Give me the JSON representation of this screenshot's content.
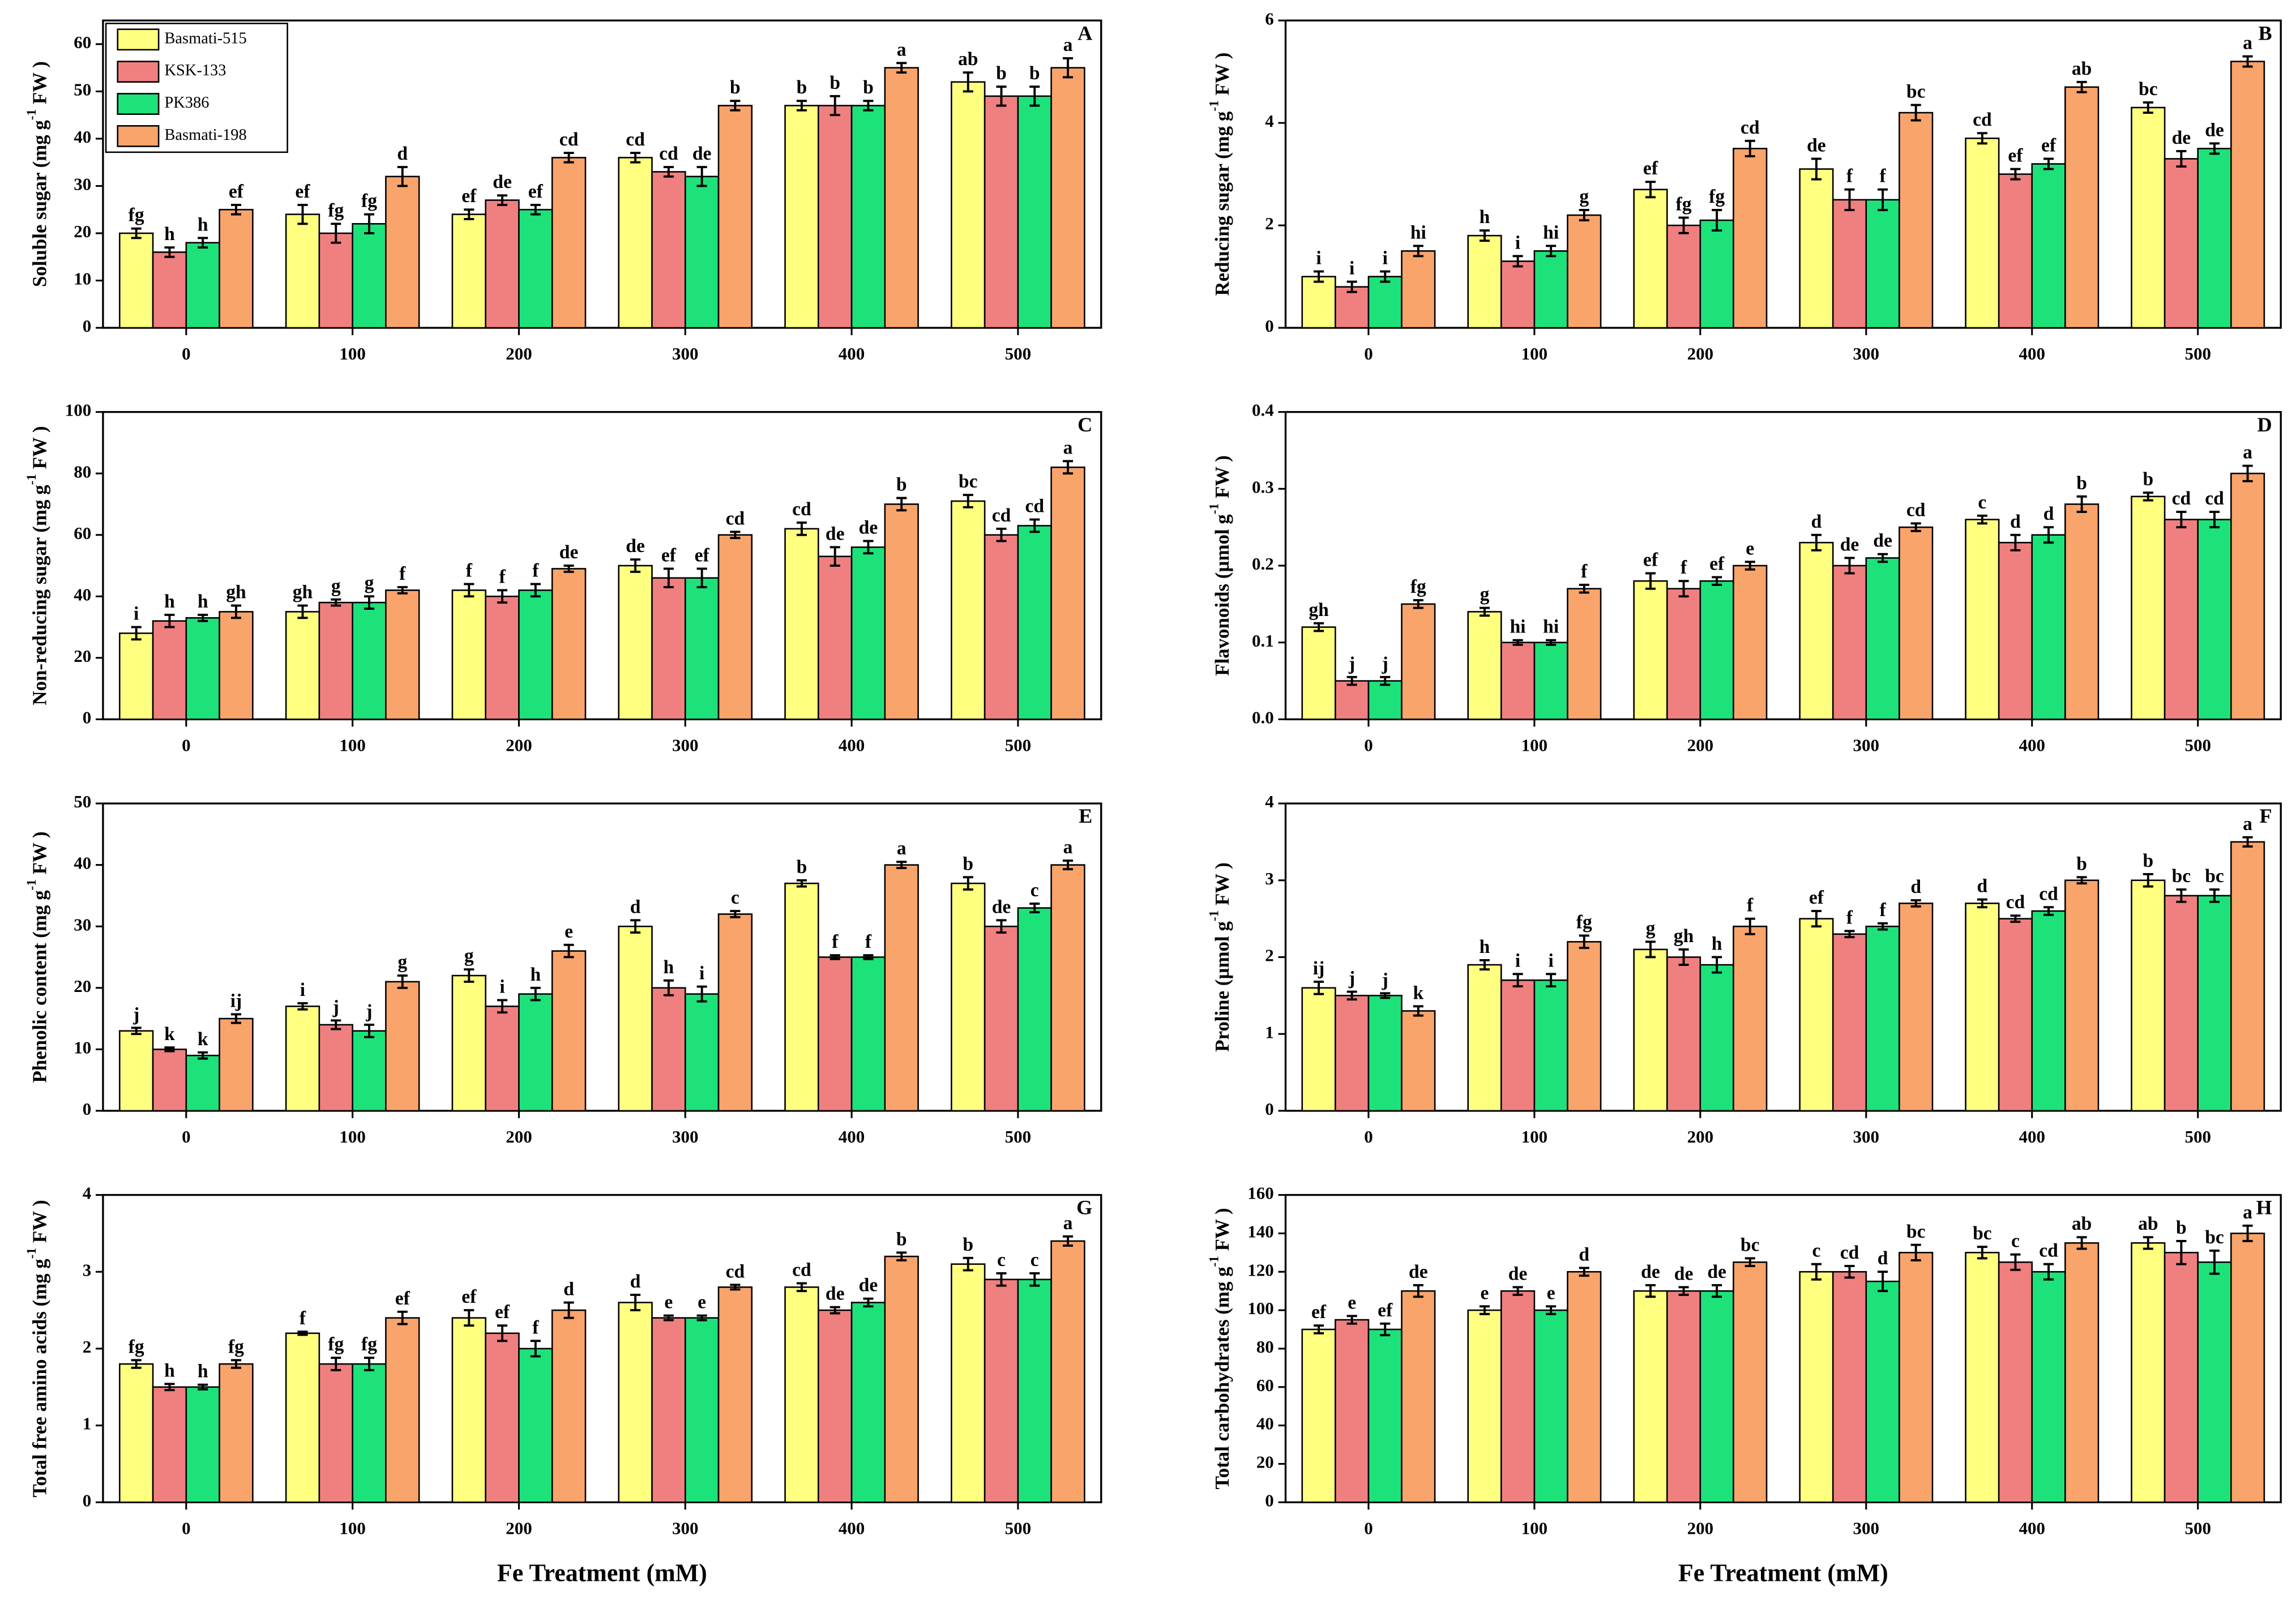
{
  "legend": [
    {
      "name": "Basmati-515",
      "color": "#ffff80"
    },
    {
      "name": "KSK-133",
      "color": "#f08080"
    },
    {
      "name": "PK386",
      "color": "#1de27a"
    },
    {
      "name": "Basmati-198",
      "color": "#f9a46b"
    }
  ],
  "chart_data": [
    {
      "type": "bar",
      "panel": "A",
      "ylabel": {
        "main": "Soluble sugar (mg g",
        "sup": "-1",
        "end": " FW )"
      },
      "categories": [
        "0",
        "100",
        "200",
        "300",
        "400",
        "500"
      ],
      "ylim": [
        0,
        65
      ],
      "yticks": [
        0,
        10,
        20,
        30,
        40,
        50,
        60
      ],
      "series": [
        {
          "values": [
            20,
            24,
            24,
            36,
            47,
            52
          ],
          "errors": [
            1,
            2,
            1,
            1,
            1,
            2
          ],
          "letters": [
            "fg",
            "ef",
            "ef",
            "cd",
            "b",
            "ab"
          ]
        },
        {
          "values": [
            16,
            20,
            27,
            33,
            47,
            49
          ],
          "errors": [
            1,
            2,
            1,
            1,
            2,
            2
          ],
          "letters": [
            "h",
            "fg",
            "de",
            "cd",
            "b",
            "b"
          ]
        },
        {
          "values": [
            18,
            22,
            25,
            32,
            47,
            49
          ],
          "errors": [
            1,
            2,
            1,
            2,
            1,
            2
          ],
          "letters": [
            "h",
            "fg",
            "ef",
            "de",
            "b",
            "b"
          ]
        },
        {
          "values": [
            25,
            32,
            36,
            47,
            55,
            55
          ],
          "errors": [
            1,
            2,
            1,
            1,
            1,
            2
          ],
          "letters": [
            "ef",
            "d",
            "cd",
            "b",
            "a",
            "a"
          ]
        }
      ]
    },
    {
      "type": "bar",
      "panel": "B",
      "ylabel": {
        "main": "Reducing sugar (mg g",
        "sup": "-1",
        "end": " FW )"
      },
      "categories": [
        "0",
        "100",
        "200",
        "300",
        "400",
        "500"
      ],
      "ylim": [
        0,
        6
      ],
      "yticks": [
        0,
        2,
        4,
        6
      ],
      "series": [
        {
          "values": [
            1.0,
            1.8,
            2.7,
            3.1,
            3.7,
            4.3
          ],
          "errors": [
            0.1,
            0.1,
            0.15,
            0.2,
            0.1,
            0.1
          ],
          "letters": [
            "i",
            "h",
            "ef",
            "de",
            "cd",
            "bc"
          ]
        },
        {
          "values": [
            0.8,
            1.3,
            2.0,
            2.5,
            3.0,
            3.3
          ],
          "errors": [
            0.1,
            0.1,
            0.15,
            0.2,
            0.1,
            0.15
          ],
          "letters": [
            "i",
            "i",
            "fg",
            "f",
            "ef",
            "de"
          ]
        },
        {
          "values": [
            1.0,
            1.5,
            2.1,
            2.5,
            3.2,
            3.5
          ],
          "errors": [
            0.1,
            0.1,
            0.2,
            0.2,
            0.1,
            0.1
          ],
          "letters": [
            "i",
            "hi",
            "fg",
            "f",
            "ef",
            "de"
          ]
        },
        {
          "values": [
            1.5,
            2.2,
            3.5,
            4.2,
            4.7,
            5.2
          ],
          "errors": [
            0.1,
            0.1,
            0.15,
            0.15,
            0.1,
            0.1
          ],
          "letters": [
            "hi",
            "g",
            "cd",
            "bc",
            "ab",
            "a"
          ]
        }
      ]
    },
    {
      "type": "bar",
      "panel": "C",
      "ylabel": {
        "main": "Non-reducing sugar (mg g",
        "sup": "-1",
        "end": " FW )"
      },
      "categories": [
        "0",
        "100",
        "200",
        "300",
        "400",
        "500"
      ],
      "ylim": [
        0,
        100
      ],
      "yticks": [
        0,
        20,
        40,
        60,
        80,
        100
      ],
      "series": [
        {
          "values": [
            28,
            35,
            42,
            50,
            62,
            71
          ],
          "errors": [
            2,
            2,
            2,
            2,
            2,
            2
          ],
          "letters": [
            "i",
            "gh",
            "f",
            "de",
            "cd",
            "bc"
          ]
        },
        {
          "values": [
            32,
            38,
            40,
            46,
            53,
            60
          ],
          "errors": [
            2,
            1,
            2,
            3,
            3,
            2
          ],
          "letters": [
            "h",
            "g",
            "f",
            "ef",
            "de",
            "cd"
          ]
        },
        {
          "values": [
            33,
            38,
            42,
            46,
            56,
            63
          ],
          "errors": [
            1,
            2,
            2,
            3,
            2,
            2
          ],
          "letters": [
            "h",
            "g",
            "f",
            "ef",
            "de",
            "cd"
          ]
        },
        {
          "values": [
            35,
            42,
            49,
            60,
            70,
            82
          ],
          "errors": [
            2,
            1,
            1,
            1,
            2,
            2
          ],
          "letters": [
            "gh",
            "f",
            "de",
            "cd",
            "b",
            "a"
          ]
        }
      ]
    },
    {
      "type": "bar",
      "panel": "D",
      "ylabel": {
        "main": "Flavonoids (µmol g",
        "sup": "-1",
        "end": " FW )"
      },
      "categories": [
        "0",
        "100",
        "200",
        "300",
        "400",
        "500"
      ],
      "ylim": [
        0,
        0.4
      ],
      "yticks": [
        {
          "value": 0,
          "label": "0.0"
        },
        0.1,
        0.2,
        0.3,
        0.4
      ],
      "series": [
        {
          "values": [
            0.12,
            0.14,
            0.18,
            0.23,
            0.26,
            0.29
          ],
          "errors": [
            0.005,
            0.005,
            0.01,
            0.01,
            0.005,
            0.005
          ],
          "letters": [
            "gh",
            "g",
            "ef",
            "d",
            "c",
            "b"
          ]
        },
        {
          "values": [
            0.05,
            0.1,
            0.17,
            0.2,
            0.23,
            0.26
          ],
          "errors": [
            0.005,
            0.003,
            0.01,
            0.01,
            0.01,
            0.01
          ],
          "letters": [
            "j",
            "hi",
            "f",
            "de",
            "d",
            "cd"
          ]
        },
        {
          "values": [
            0.05,
            0.1,
            0.18,
            0.21,
            0.24,
            0.26
          ],
          "errors": [
            0.005,
            0.003,
            0.005,
            0.005,
            0.01,
            0.01
          ],
          "letters": [
            "j",
            "hi",
            "ef",
            "de",
            "d",
            "cd"
          ]
        },
        {
          "values": [
            0.15,
            0.17,
            0.2,
            0.25,
            0.28,
            0.32
          ],
          "errors": [
            0.005,
            0.005,
            0.005,
            0.005,
            0.01,
            0.01
          ],
          "letters": [
            "fg",
            "f",
            "e",
            "cd",
            "b",
            "a"
          ]
        }
      ]
    },
    {
      "type": "bar",
      "panel": "E",
      "ylabel": {
        "main": "Phenolic content (mg g",
        "sup": "-1",
        "end": " FW )"
      },
      "categories": [
        "0",
        "100",
        "200",
        "300",
        "400",
        "500"
      ],
      "ylim": [
        0,
        50
      ],
      "yticks": [
        0,
        10,
        20,
        30,
        40,
        50
      ],
      "series": [
        {
          "values": [
            13,
            17,
            22,
            30,
            37,
            37
          ],
          "errors": [
            0.5,
            0.5,
            1,
            1,
            0.5,
            1
          ],
          "letters": [
            "j",
            "i",
            "g",
            "d",
            "b",
            "b"
          ]
        },
        {
          "values": [
            10,
            14,
            17,
            20,
            25,
            30
          ],
          "errors": [
            0.3,
            0.7,
            1,
            1.2,
            0.3,
            1
          ],
          "letters": [
            "k",
            "j",
            "i",
            "h",
            "f",
            "de"
          ]
        },
        {
          "values": [
            9,
            13,
            19,
            19,
            25,
            33
          ],
          "errors": [
            0.5,
            1,
            1,
            1.2,
            0.3,
            0.7
          ],
          "letters": [
            "k",
            "j",
            "h",
            "i",
            "f",
            "c"
          ]
        },
        {
          "values": [
            15,
            21,
            26,
            32,
            40,
            40
          ],
          "errors": [
            0.7,
            1,
            1,
            0.5,
            0.5,
            0.7
          ],
          "letters": [
            "ij",
            "g",
            "e",
            "c",
            "a",
            "a"
          ]
        }
      ]
    },
    {
      "type": "bar",
      "panel": "F",
      "ylabel": {
        "main": "Proline (µmol g",
        "sup": "-1",
        "end": " FW )"
      },
      "categories": [
        "0",
        "100",
        "200",
        "300",
        "400",
        "500"
      ],
      "ylim": [
        0,
        4
      ],
      "yticks": [
        0,
        1,
        2,
        3,
        4
      ],
      "series": [
        {
          "values": [
            1.6,
            1.9,
            2.1,
            2.5,
            2.7,
            3.0
          ],
          "errors": [
            0.08,
            0.06,
            0.1,
            0.1,
            0.05,
            0.08
          ],
          "letters": [
            "ij",
            "h",
            "g",
            "ef",
            "d",
            "b"
          ]
        },
        {
          "values": [
            1.5,
            1.7,
            2.0,
            2.3,
            2.5,
            2.8
          ],
          "errors": [
            0.05,
            0.08,
            0.1,
            0.04,
            0.04,
            0.08
          ],
          "letters": [
            "j",
            "i",
            "gh",
            "f",
            "cd",
            "bc"
          ]
        },
        {
          "values": [
            1.5,
            1.7,
            1.9,
            2.4,
            2.6,
            2.8
          ],
          "errors": [
            0.03,
            0.08,
            0.1,
            0.04,
            0.05,
            0.08
          ],
          "letters": [
            "j",
            "i",
            "h",
            "f",
            "cd",
            "bc"
          ]
        },
        {
          "values": [
            1.3,
            2.2,
            2.4,
            2.7,
            3.0,
            3.5
          ],
          "errors": [
            0.06,
            0.08,
            0.1,
            0.04,
            0.04,
            0.06
          ],
          "letters": [
            "k",
            "fg",
            "f",
            "d",
            "b",
            "a"
          ]
        }
      ]
    },
    {
      "type": "bar",
      "panel": "G",
      "ylabel": {
        "main": "Total free amino acids (mg g",
        "sup": "-1",
        "end": " FW )"
      },
      "xlabel": "Fe Treatment (mM)",
      "categories": [
        "0",
        "100",
        "200",
        "300",
        "400",
        "500"
      ],
      "ylim": [
        0,
        4
      ],
      "yticks": [
        0,
        1,
        2,
        3,
        4
      ],
      "series": [
        {
          "values": [
            1.8,
            2.2,
            2.4,
            2.6,
            2.8,
            3.1
          ],
          "errors": [
            0.05,
            0.02,
            0.1,
            0.1,
            0.05,
            0.08
          ],
          "letters": [
            "fg",
            "f",
            "ef",
            "d",
            "cd",
            "b"
          ]
        },
        {
          "values": [
            1.5,
            1.8,
            2.2,
            2.4,
            2.5,
            2.9
          ],
          "errors": [
            0.04,
            0.08,
            0.1,
            0.03,
            0.04,
            0.08
          ],
          "letters": [
            "h",
            "fg",
            "ef",
            "e",
            "de",
            "c"
          ]
        },
        {
          "values": [
            1.5,
            1.8,
            2.0,
            2.4,
            2.6,
            2.9
          ],
          "errors": [
            0.03,
            0.08,
            0.1,
            0.03,
            0.05,
            0.08
          ],
          "letters": [
            "h",
            "fg",
            "f",
            "e",
            "de",
            "c"
          ]
        },
        {
          "values": [
            1.8,
            2.4,
            2.5,
            2.8,
            3.2,
            3.4
          ],
          "errors": [
            0.05,
            0.08,
            0.1,
            0.03,
            0.05,
            0.06
          ],
          "letters": [
            "fg",
            "ef",
            "d",
            "cd",
            "b",
            "a"
          ]
        }
      ]
    },
    {
      "type": "bar",
      "panel": "H",
      "ylabel": {
        "main": "Total carbohydrates (mg g",
        "sup": "-1",
        "end": " FW )"
      },
      "xlabel": "Fe Treatment (mM)",
      "categories": [
        "0",
        "100",
        "200",
        "300",
        "400",
        "500"
      ],
      "ylim": [
        0,
        160
      ],
      "yticks": [
        0,
        20,
        40,
        60,
        80,
        100,
        120,
        140,
        160
      ],
      "series": [
        {
          "values": [
            90,
            100,
            110,
            120,
            130,
            135
          ],
          "errors": [
            2,
            2,
            3,
            4,
            3,
            3
          ],
          "letters": [
            "ef",
            "e",
            "de",
            "c",
            "bc",
            "ab"
          ]
        },
        {
          "values": [
            95,
            110,
            110,
            120,
            125,
            130
          ],
          "errors": [
            2,
            2,
            2,
            3,
            4,
            6
          ],
          "letters": [
            "e",
            "de",
            "de",
            "cd",
            "c",
            "b"
          ]
        },
        {
          "values": [
            90,
            100,
            110,
            115,
            120,
            125
          ],
          "errors": [
            3,
            2,
            3,
            5,
            4,
            6
          ],
          "letters": [
            "ef",
            "e",
            "de",
            "d",
            "cd",
            "bc"
          ]
        },
        {
          "values": [
            110,
            120,
            125,
            130,
            135,
            140
          ],
          "errors": [
            3,
            2,
            2,
            4,
            3,
            4
          ],
          "letters": [
            "de",
            "d",
            "bc",
            "bc",
            "ab",
            "a"
          ]
        }
      ]
    }
  ]
}
